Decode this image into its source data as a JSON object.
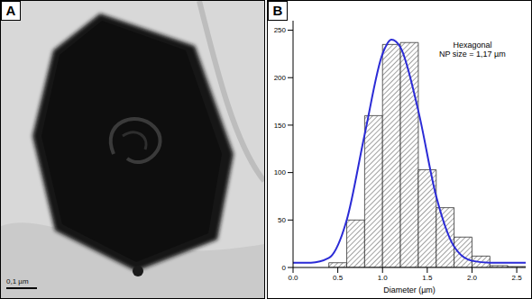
{
  "panels": [
    "A",
    "B"
  ],
  "image": {
    "scale_bar": "0,1 µm"
  },
  "chart_data": {
    "type": "histogram",
    "bins": [
      0,
      0.2,
      0.4,
      0.6,
      0.8,
      1.0,
      1.2,
      1.4,
      1.6,
      1.8,
      2.0,
      2.2,
      2.4,
      2.6
    ],
    "counts": [
      0,
      0,
      5,
      50,
      160,
      235,
      237,
      103,
      63,
      32,
      12,
      2,
      1
    ],
    "color": "#444444",
    "fit": {
      "type": "line",
      "color": "#2b2bd6",
      "x": [
        0,
        0.2,
        0.4,
        0.6,
        0.8,
        1.0,
        1.1,
        1.2,
        1.4,
        1.6,
        1.8,
        2.0,
        2.2,
        2.6
      ],
      "values": [
        5,
        5,
        10,
        50,
        140,
        225,
        240,
        232,
        165,
        75,
        22,
        7,
        5,
        5
      ]
    },
    "xlabel": "Diameter (µm)",
    "annotations": [
      "Hexagonal",
      "NP size = 1,17 µm"
    ],
    "xlim": [
      0,
      2.6
    ],
    "ylim": [
      0,
      260
    ],
    "xticks": [
      {
        "value": 0,
        "label": "0.0"
      },
      0.5,
      {
        "value": 1,
        "label": "1.0"
      },
      1.5,
      {
        "value": 2,
        "label": "2.0"
      },
      2.5
    ],
    "yticks": [
      0,
      50,
      100,
      150,
      200,
      250
    ]
  }
}
